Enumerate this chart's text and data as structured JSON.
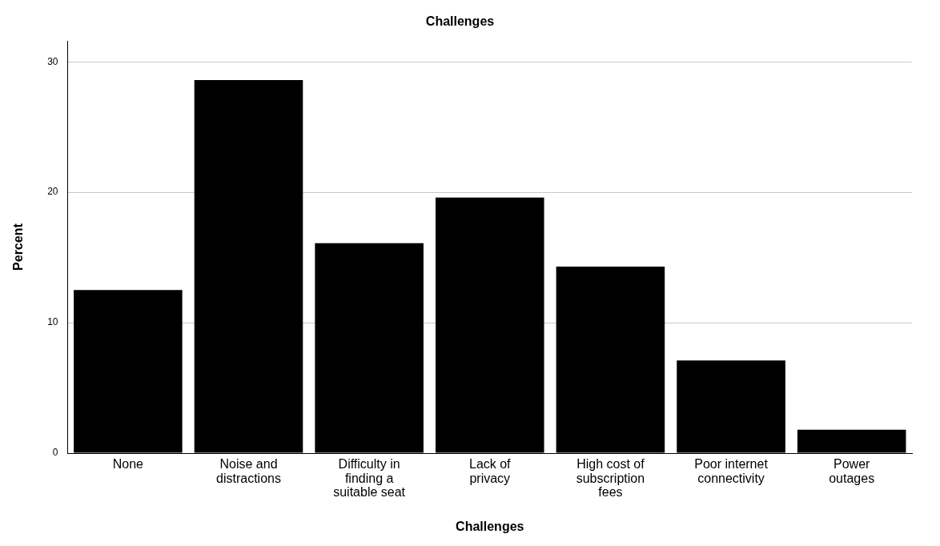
{
  "chart_data": {
    "type": "bar",
    "title": "Challenges",
    "xlabel": "Challenges",
    "ylabel": "Percent",
    "categories": [
      "None",
      "Noise and\ndistractions",
      "Difficulty in\nfinding a\nsuitable seat",
      "Lack of\nprivacy",
      "High cost of\nsubscription\nfees",
      "Poor internet\nconnectivity",
      "Power\noutages"
    ],
    "values": [
      12.5,
      28.6,
      16.1,
      19.6,
      14.3,
      7.1,
      1.8
    ],
    "color": "#000000",
    "ylim": [
      0,
      31.6
    ],
    "yticks": [
      0,
      10,
      20,
      30
    ],
    "grid": "y",
    "legend": false
  }
}
